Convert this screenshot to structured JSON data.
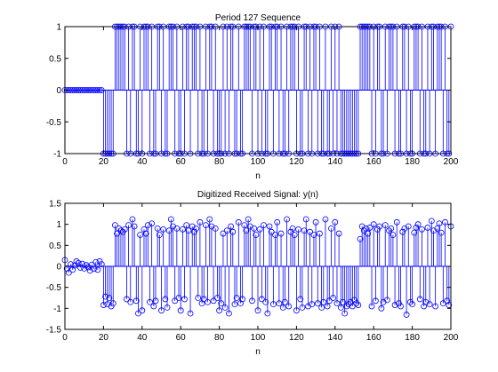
{
  "chart_data": [
    {
      "type": "stem",
      "title": "Period 127 Sequence",
      "xlabel": "n",
      "color": "#0000ff",
      "xlim": [
        0,
        200
      ],
      "ylim": [
        -1,
        1
      ],
      "xticks": [
        0,
        20,
        40,
        60,
        80,
        100,
        120,
        140,
        160,
        180,
        200
      ],
      "yticks": [
        -1,
        -0.5,
        0,
        0.5,
        1
      ],
      "x": [
        0,
        1,
        2,
        3,
        4,
        5,
        6,
        7,
        8,
        9,
        10,
        11,
        12,
        13,
        14,
        15,
        16,
        17,
        18,
        19,
        20,
        21,
        22,
        23,
        24,
        25,
        26,
        27,
        28,
        29,
        30,
        31,
        32,
        33,
        34,
        35,
        36,
        37,
        38,
        39,
        40,
        41,
        42,
        43,
        44,
        45,
        46,
        47,
        48,
        49,
        50,
        51,
        52,
        53,
        54,
        55,
        56,
        57,
        58,
        59,
        60,
        61,
        62,
        63,
        64,
        65,
        66,
        67,
        68,
        69,
        70,
        71,
        72,
        73,
        74,
        75,
        76,
        77,
        78,
        79,
        80,
        81,
        82,
        83,
        84,
        85,
        86,
        87,
        88,
        89,
        90,
        91,
        92,
        93,
        94,
        95,
        96,
        97,
        98,
        99,
        100,
        101,
        102,
        103,
        104,
        105,
        106,
        107,
        108,
        109,
        110,
        111,
        112,
        113,
        114,
        115,
        116,
        117,
        118,
        119,
        120,
        121,
        122,
        123,
        124,
        125,
        126,
        127,
        128,
        129,
        130,
        131,
        132,
        133,
        134,
        135,
        136,
        137,
        138,
        139,
        140,
        141,
        142,
        143,
        144,
        145,
        146,
        147,
        148,
        149,
        150,
        151,
        152,
        153,
        154,
        155,
        156,
        157,
        158,
        159,
        160,
        161,
        162,
        163,
        164,
        165,
        166,
        167,
        168,
        169,
        170,
        171,
        172,
        173,
        174,
        175,
        176,
        177,
        178,
        179,
        180,
        181,
        182,
        183,
        184,
        185,
        186,
        187,
        188,
        189,
        190,
        191,
        192,
        193,
        194,
        195,
        196,
        197,
        198,
        199,
        200
      ],
      "values": [
        0,
        0,
        0,
        0,
        0,
        0,
        0,
        0,
        0,
        0,
        0,
        0,
        0,
        0,
        0,
        0,
        0,
        0,
        0,
        0,
        -1,
        -1,
        -1,
        -1,
        -1,
        -1,
        1,
        1,
        1,
        1,
        1,
        1,
        -1,
        1,
        -1,
        1,
        1,
        -1,
        -1,
        1,
        -1,
        1,
        1,
        1,
        -1,
        1,
        -1,
        -1,
        1,
        1,
        -1,
        1,
        -1,
        -1,
        1,
        1,
        1,
        -1,
        1,
        -1,
        -1,
        1,
        -1,
        1,
        1,
        -1,
        1,
        1,
        1,
        -1,
        1,
        -1,
        -1,
        1,
        -1,
        1,
        1,
        -1,
        1,
        -1,
        -1,
        -1,
        1,
        -1,
        1,
        -1,
        1,
        1,
        -1,
        -1,
        1,
        -1,
        -1,
        1,
        1,
        1,
        1,
        -1,
        1,
        1,
        -1,
        1,
        -1,
        1,
        -1,
        -1,
        1,
        1,
        -1,
        1,
        1,
        -1,
        1,
        -1,
        -1,
        1,
        -1,
        1,
        1,
        1,
        -1,
        1,
        -1,
        -1,
        1,
        1,
        -1,
        1,
        -1,
        1,
        1,
        -1,
        1,
        -1,
        -1,
        1,
        -1,
        -1,
        1,
        -1,
        1,
        -1,
        1,
        -1,
        -1,
        -1,
        -1,
        -1,
        -1,
        -1,
        -1,
        -1,
        -1,
        1,
        1,
        1,
        1,
        1,
        1,
        -1,
        1,
        -1,
        1,
        1,
        -1,
        -1,
        1,
        -1,
        1,
        1,
        1,
        -1,
        1,
        -1,
        -1,
        1,
        1,
        -1,
        1,
        -1,
        -1,
        1,
        1,
        1,
        -1,
        1,
        -1,
        -1,
        1,
        -1,
        1,
        1,
        -1,
        1,
        1,
        1,
        -1,
        1,
        -1,
        -1,
        1
      ]
    },
    {
      "type": "stem",
      "title": "Digitized Received Signal: y(n)",
      "xlabel": "n",
      "color": "#0000ff",
      "xlim": [
        0,
        200
      ],
      "ylim": [
        -1.5,
        1.5
      ],
      "xticks": [
        0,
        20,
        40,
        60,
        80,
        100,
        120,
        140,
        160,
        180,
        200
      ],
      "yticks": [
        -1.5,
        -1,
        -0.5,
        0,
        0.5,
        1,
        1.5
      ],
      "x": [
        0,
        1,
        2,
        3,
        4,
        5,
        6,
        7,
        8,
        9,
        10,
        11,
        12,
        13,
        14,
        15,
        16,
        17,
        18,
        19,
        20,
        21,
        22,
        23,
        24,
        25,
        26,
        27,
        28,
        29,
        30,
        31,
        32,
        33,
        34,
        35,
        36,
        37,
        38,
        39,
        40,
        41,
        42,
        43,
        44,
        45,
        46,
        47,
        48,
        49,
        50,
        51,
        52,
        53,
        54,
        55,
        56,
        57,
        58,
        59,
        60,
        61,
        62,
        63,
        64,
        65,
        66,
        67,
        68,
        69,
        70,
        71,
        72,
        73,
        74,
        75,
        76,
        77,
        78,
        79,
        80,
        81,
        82,
        83,
        84,
        85,
        86,
        87,
        88,
        89,
        90,
        91,
        92,
        93,
        94,
        95,
        96,
        97,
        98,
        99,
        100,
        101,
        102,
        103,
        104,
        105,
        106,
        107,
        108,
        109,
        110,
        111,
        112,
        113,
        114,
        115,
        116,
        117,
        118,
        119,
        120,
        121,
        122,
        123,
        124,
        125,
        126,
        127,
        128,
        129,
        130,
        131,
        132,
        133,
        134,
        135,
        136,
        137,
        138,
        139,
        140,
        141,
        142,
        143,
        144,
        145,
        146,
        147,
        148,
        149,
        150,
        151,
        152,
        153,
        154,
        155,
        156,
        157,
        158,
        159,
        160,
        161,
        162,
        163,
        164,
        165,
        166,
        167,
        168,
        169,
        170,
        171,
        172,
        173,
        174,
        175,
        176,
        177,
        178,
        179,
        180,
        181,
        182,
        183,
        184,
        185,
        186,
        187,
        188,
        189,
        190,
        191,
        192,
        193,
        194,
        195,
        196,
        197,
        198,
        199,
        200
      ],
      "values": [
        0.15,
        -0.05,
        -0.15,
        0.05,
        -0.08,
        0.02,
        0.12,
        0.08,
        -0.03,
        0.06,
        -0.05,
        0.03,
        -0.02,
        -0.1,
        0.04,
        -0.06,
        0.1,
        -0.08,
        0.12,
        0.05,
        -0.92,
        -0.72,
        -0.9,
        -0.75,
        -0.95,
        -0.88,
        0.98,
        0.78,
        0.9,
        0.85,
        0.82,
        0.88,
        -0.78,
        0.98,
        -0.85,
        1.12,
        0.95,
        -0.82,
        -1.12,
        0.75,
        -1.05,
        0.88,
        0.78,
        0.98,
        -0.85,
        1.02,
        -0.95,
        -0.82,
        0.9,
        0.75,
        -1.05,
        0.88,
        -0.78,
        -0.98,
        0.85,
        1.12,
        0.95,
        -0.82,
        0.9,
        -0.75,
        -1.05,
        0.88,
        -0.78,
        0.98,
        0.85,
        -1.12,
        0.95,
        0.82,
        0.9,
        -0.75,
        1.05,
        -0.88,
        -0.78,
        0.98,
        -0.85,
        1.12,
        0.95,
        -0.82,
        0.9,
        -0.75,
        -1.05,
        -0.88,
        0.78,
        -0.98,
        0.85,
        -1.12,
        0.95,
        0.82,
        -0.9,
        -0.75,
        1.05,
        -0.88,
        -0.78,
        0.98,
        0.85,
        1.12,
        0.95,
        -0.82,
        0.9,
        0.75,
        -1.05,
        0.88,
        -0.78,
        0.98,
        -0.85,
        -1.12,
        0.95,
        0.82,
        -0.9,
        0.75,
        1.05,
        -0.88,
        0.78,
        -0.98,
        -0.85,
        1.12,
        -0.95,
        0.82,
        0.9,
        0.75,
        -1.05,
        0.88,
        -0.78,
        -0.98,
        0.85,
        1.12,
        -0.95,
        0.82,
        -0.9,
        0.75,
        1.05,
        -0.88,
        0.78,
        -0.98,
        -0.85,
        1.12,
        -0.95,
        -0.82,
        0.9,
        -0.75,
        1.05,
        -0.88,
        0.78,
        -0.98,
        -0.85,
        -1.12,
        -0.95,
        -0.9,
        -0.85,
        -0.95,
        -0.8,
        -0.88,
        -0.92,
        0.65,
        0.95,
        0.85,
        0.9,
        0.78,
        0.92,
        -0.95,
        1.0,
        -0.82,
        0.88,
        0.95,
        -1.0,
        -0.85,
        0.98,
        -0.8,
        0.85,
        0.9,
        0.75,
        -0.92,
        1.05,
        -0.88,
        -0.95,
        0.82,
        0.9,
        -1.15,
        0.95,
        -0.85,
        -0.9,
        0.8,
        0.92,
        1.0,
        -0.78,
        0.88,
        -0.95,
        -0.85,
        0.92,
        -0.9,
        1.08,
        0.85,
        -0.95,
        0.9,
        1.02,
        0.8,
        -0.88,
        1.05,
        -0.82,
        -0.92,
        0.95
      ]
    }
  ]
}
